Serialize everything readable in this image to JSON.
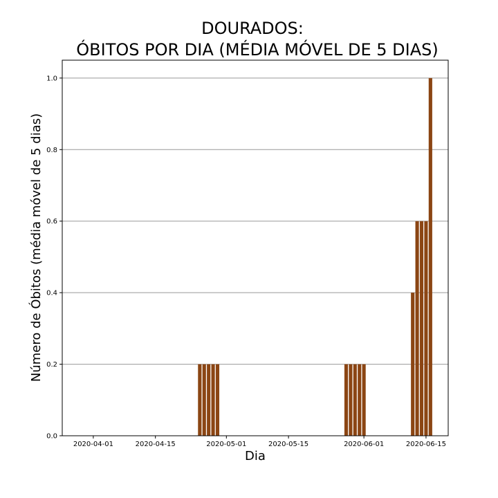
{
  "chart_data": {
    "type": "bar",
    "title_line1": "DOURADOS:",
    "title_line2": "ÓBITOS POR DIA (MÉDIA MÓVEL DE 5 DIAS)",
    "xlabel": "Dia",
    "ylabel": "Número de Óbitos (média móvel de 5 dias)",
    "ylim": [
      0,
      1.05
    ],
    "xlim": [
      "2020-03-25",
      "2020-06-20"
    ],
    "yticks": [
      {
        "value": 0.0,
        "label": "0.0"
      },
      {
        "value": 0.2,
        "label": "0.2"
      },
      {
        "value": 0.4,
        "label": "0.4"
      },
      {
        "value": 0.6,
        "label": "0.6"
      },
      {
        "value": 0.8,
        "label": "0.8"
      },
      {
        "value": 1.0,
        "label": "1.0"
      }
    ],
    "xticks": [
      {
        "date": "2020-04-01",
        "label": "2020-04-01"
      },
      {
        "date": "2020-04-15",
        "label": "2020-04-15"
      },
      {
        "date": "2020-05-01",
        "label": "2020-05-01"
      },
      {
        "date": "2020-05-15",
        "label": "2020-05-15"
      },
      {
        "date": "2020-06-01",
        "label": "2020-06-01"
      },
      {
        "date": "2020-06-15",
        "label": "2020-06-15"
      }
    ],
    "grid": "y",
    "bar_color": "#8b4513",
    "points": [
      {
        "date": "2020-04-25",
        "value": 0.2
      },
      {
        "date": "2020-04-26",
        "value": 0.2
      },
      {
        "date": "2020-04-27",
        "value": 0.2
      },
      {
        "date": "2020-04-28",
        "value": 0.2
      },
      {
        "date": "2020-04-29",
        "value": 0.2
      },
      {
        "date": "2020-05-28",
        "value": 0.2
      },
      {
        "date": "2020-05-29",
        "value": 0.2
      },
      {
        "date": "2020-05-30",
        "value": 0.2
      },
      {
        "date": "2020-05-31",
        "value": 0.2
      },
      {
        "date": "2020-06-01",
        "value": 0.2
      },
      {
        "date": "2020-06-12",
        "value": 0.4
      },
      {
        "date": "2020-06-13",
        "value": 0.6
      },
      {
        "date": "2020-06-14",
        "value": 0.6
      },
      {
        "date": "2020-06-15",
        "value": 0.6
      },
      {
        "date": "2020-06-16",
        "value": 1.0
      }
    ]
  }
}
